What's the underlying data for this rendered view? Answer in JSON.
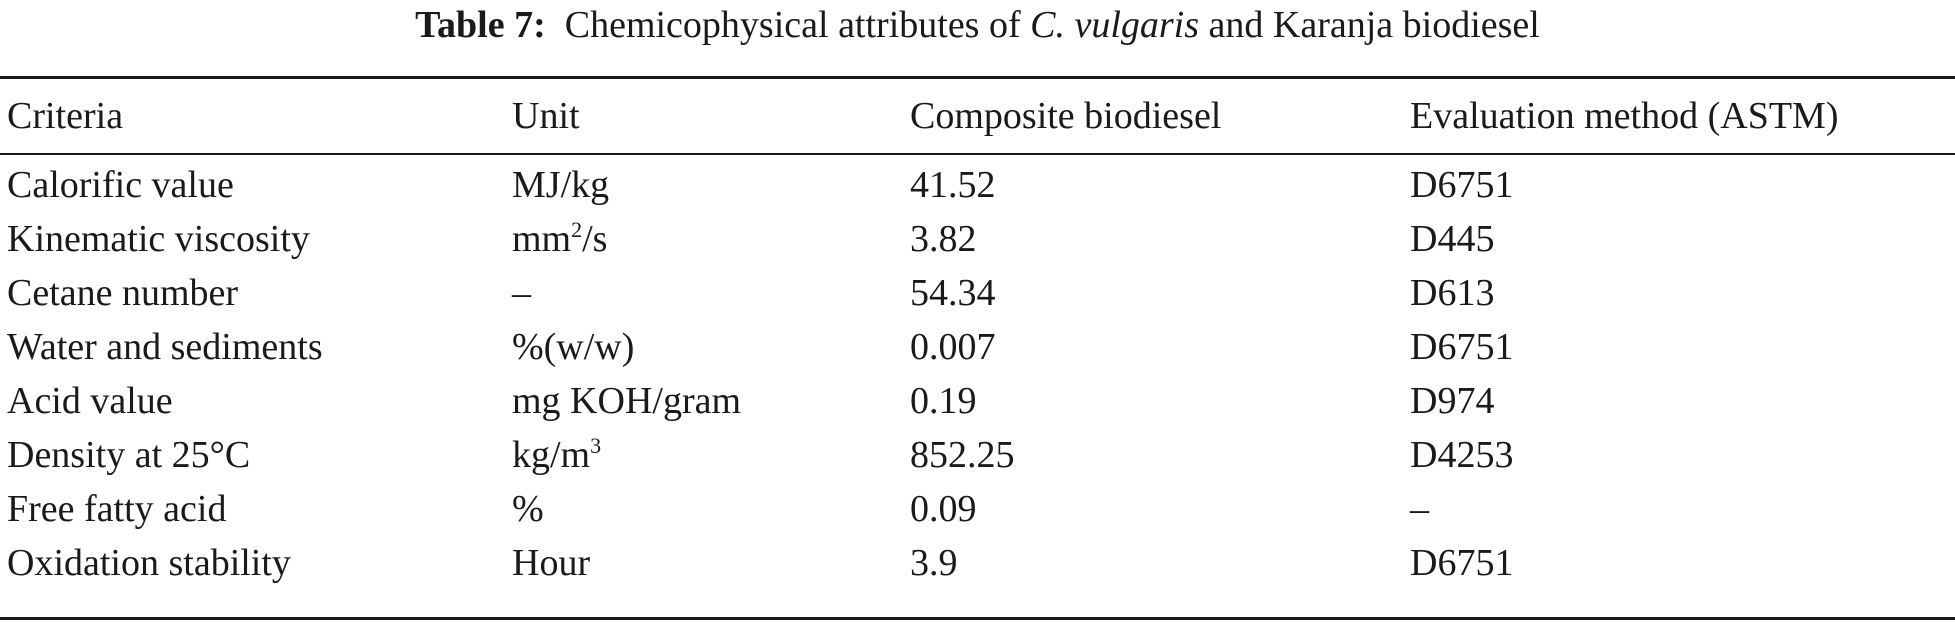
{
  "caption": {
    "label": "Table 7:",
    "text_before": "Chemicophysical attributes of ",
    "species": "C. vulgaris",
    "text_after": " and Karanja biodiesel"
  },
  "table": {
    "headers": [
      "Criteria",
      "Unit",
      "Composite biodiesel",
      "Evaluation method (ASTM)"
    ],
    "rows": [
      {
        "criteria": "Calorific value",
        "unit": "MJ/kg",
        "unit_sup": "",
        "unit_after": "",
        "value": "41.52",
        "method": "D6751"
      },
      {
        "criteria": "Kinematic viscosity",
        "unit": "mm",
        "unit_sup": "2",
        "unit_after": "/s",
        "value": "3.82",
        "method": "D445"
      },
      {
        "criteria": "Cetane number",
        "unit": "–",
        "unit_sup": "",
        "unit_after": "",
        "value": "54.34",
        "method": "D613"
      },
      {
        "criteria": "Water and sediments",
        "unit": "%(w/w)",
        "unit_sup": "",
        "unit_after": "",
        "value": "0.007",
        "method": "D6751"
      },
      {
        "criteria": "Acid value",
        "unit": "mg KOH/gram",
        "unit_sup": "",
        "unit_after": "",
        "value": "0.19",
        "method": "D974"
      },
      {
        "criteria": "Density at 25°C",
        "unit": "kg/m",
        "unit_sup": "3",
        "unit_after": "",
        "value": "852.25",
        "method": "D4253"
      },
      {
        "criteria": "Free fatty acid",
        "unit": "%",
        "unit_sup": "",
        "unit_after": "",
        "value": "0.09",
        "method": "–"
      },
      {
        "criteria": "Oxidation stability",
        "unit": "Hour",
        "unit_sup": "",
        "unit_after": "",
        "value": "3.9",
        "method": "D6751"
      }
    ]
  }
}
